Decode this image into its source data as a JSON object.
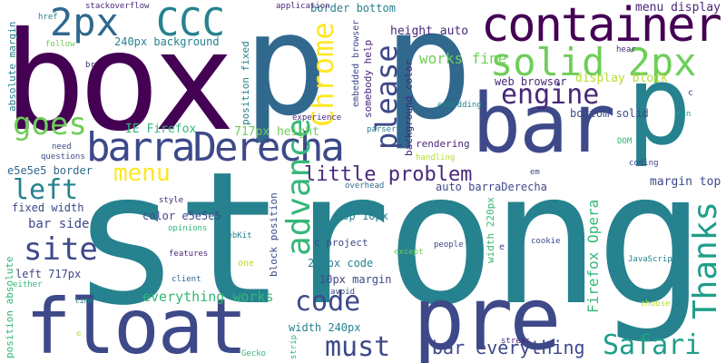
{
  "colors": {
    "background": "#ffffff",
    "palette": [
      "#440154",
      "#482878",
      "#3e4989",
      "#31688e",
      "#26828e",
      "#1f9e89",
      "#35b779",
      "#6ece58",
      "#b5de2b",
      "#fde725"
    ]
  },
  "words": [
    {
      "text": "strong",
      "color": "#26828e"
    },
    {
      "text": "box",
      "color": "#440154"
    },
    {
      "text": "p",
      "color": "#31688e"
    },
    {
      "text": "p",
      "color": "#31688e"
    },
    {
      "text": "p",
      "color": "#26828e"
    },
    {
      "text": "bar",
      "color": "#3e4989"
    },
    {
      "text": "pre",
      "color": "#3e4989"
    },
    {
      "text": "float",
      "color": "#3e4989"
    },
    {
      "text": "container",
      "color": "#440154"
    },
    {
      "text": "2px",
      "color": "#31688e"
    },
    {
      "text": "CCC",
      "color": "#26828e"
    },
    {
      "text": "solid 2px",
      "color": "#6ece58"
    },
    {
      "text": "barraDerecha",
      "color": "#3e4989"
    },
    {
      "text": "engine",
      "color": "#482878"
    },
    {
      "text": "Chrome",
      "color": "#fde725"
    },
    {
      "text": "please",
      "color": "#3e4989"
    },
    {
      "text": "advance",
      "color": "#35b779"
    },
    {
      "text": "goes",
      "color": "#6ece58"
    },
    {
      "text": "left",
      "color": "#26828e"
    },
    {
      "text": "site",
      "color": "#3e4989"
    },
    {
      "text": "menu",
      "color": "#fde725"
    },
    {
      "text": "little problem",
      "color": "#482878"
    },
    {
      "text": "code",
      "color": "#3e4989"
    },
    {
      "text": "Thanks",
      "color": "#1f9e89"
    },
    {
      "text": "Safari",
      "color": "#1f9e89"
    },
    {
      "text": "must",
      "color": "#3e4989"
    },
    {
      "text": "bar everything",
      "color": "#3e4989"
    },
    {
      "text": "everything works",
      "color": "#35b779"
    },
    {
      "text": "Firefox Opera",
      "color": "#35b779"
    },
    {
      "text": "works fine",
      "color": "#6ece58"
    },
    {
      "text": "menu display",
      "color": "#482878"
    },
    {
      "text": "display block",
      "color": "#b5de2b"
    },
    {
      "text": "web browser",
      "color": "#482878"
    },
    {
      "text": "bottom solid",
      "color": "#3e4989"
    },
    {
      "text": "height auto",
      "color": "#482878"
    },
    {
      "text": "background color",
      "color": "#482878"
    },
    {
      "text": "somebody help",
      "color": "#482878"
    },
    {
      "text": "embedded browser",
      "color": "#3e4989"
    },
    {
      "text": "border bottom",
      "color": "#26828e"
    },
    {
      "text": "240px background",
      "color": "#26828e"
    },
    {
      "text": "IE Firefox",
      "color": "#35b779"
    },
    {
      "text": "717px height",
      "color": "#6ece58"
    },
    {
      "text": "e5e5e5 border",
      "color": "#31688e"
    },
    {
      "text": "fixed width",
      "color": "#3e4989"
    },
    {
      "text": "bar side",
      "color": "#3e4989"
    },
    {
      "text": "color e5e5e5",
      "color": "#3e4989"
    },
    {
      "text": "left 717px",
      "color": "#3e4989"
    },
    {
      "text": "absolute margin",
      "color": "#26828e"
    },
    {
      "text": "position absolute",
      "color": "#35b779"
    },
    {
      "text": "position fixed",
      "color": "#26828e"
    },
    {
      "text": "block position",
      "color": "#3e4989"
    },
    {
      "text": "auto barraDerecha",
      "color": "#3e4989"
    },
    {
      "text": "margin top",
      "color": "#3e4989"
    },
    {
      "text": "top 10px",
      "color": "#26828e"
    },
    {
      "text": "c project",
      "color": "#3e4989"
    },
    {
      "text": "220px code",
      "color": "#26828e"
    },
    {
      "text": "10px margin",
      "color": "#3e4989"
    },
    {
      "text": "width 240px",
      "color": "#26828e"
    },
    {
      "text": "width 220px",
      "color": "#35b779"
    },
    {
      "text": "rendering",
      "color": "#482878"
    },
    {
      "text": "handling",
      "color": "#b5de2b"
    },
    {
      "text": "parser",
      "color": "#26828e"
    },
    {
      "text": "experience",
      "color": "#482878"
    },
    {
      "text": "application",
      "color": "#482878"
    },
    {
      "text": "stackoverflow",
      "color": "#482878"
    },
    {
      "text": "href",
      "color": "#26828e"
    },
    {
      "text": "follow",
      "color": "#6ece58"
    },
    {
      "text": "br",
      "color": "#482878"
    },
    {
      "text": "need",
      "color": "#3e4989"
    },
    {
      "text": "questions",
      "color": "#3e4989"
    },
    {
      "text": "style",
      "color": "#482878"
    },
    {
      "text": "opinions",
      "color": "#35b779"
    },
    {
      "text": "features",
      "color": "#482878"
    },
    {
      "text": "client",
      "color": "#31688e"
    },
    {
      "text": "one",
      "color": "#b5de2b"
    },
    {
      "text": "WebKit",
      "color": "#26828e"
    },
    {
      "text": "either",
      "color": "#35b779"
    },
    {
      "text": "time",
      "color": "#26828e"
    },
    {
      "text": "e",
      "color": "#b5de2b"
    },
    {
      "text": "Gecko",
      "color": "#35b779"
    },
    {
      "text": "strip",
      "color": "#35b779"
    },
    {
      "text": "avoid",
      "color": "#3e4989"
    },
    {
      "text": "except",
      "color": "#6ece58"
    },
    {
      "text": "overhead",
      "color": "#31688e"
    },
    {
      "text": "em",
      "color": "#3e4989"
    },
    {
      "text": "people",
      "color": "#3e4989"
    },
    {
      "text": "cookie",
      "color": "#3e4989"
    },
    {
      "text": "JavaScript",
      "color": "#26828e"
    },
    {
      "text": "choose",
      "color": "#b5de2b"
    },
    {
      "text": "stress",
      "color": "#482878"
    },
    {
      "text": "embedding",
      "color": "#26828e"
    },
    {
      "text": "DOM",
      "color": "#35b779"
    },
    {
      "text": "coding",
      "color": "#3e4989"
    },
    {
      "text": "run",
      "color": "#1f9e89"
    },
    {
      "text": "hear",
      "color": "#482878"
    },
    {
      "text": "c",
      "color": "#3e4989"
    },
    {
      "text": "u",
      "color": "#3e4989"
    },
    {
      "text": "e",
      "color": "#3e4989"
    }
  ]
}
